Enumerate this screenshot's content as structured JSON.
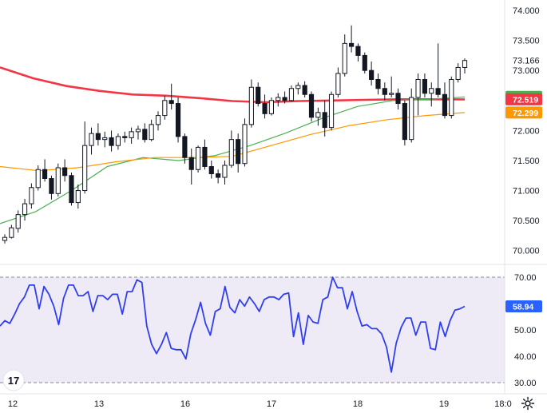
{
  "chart_data": [
    {
      "type": "candlestick",
      "x_labels": [
        "12",
        "13",
        "16",
        "17",
        "18",
        "19",
        "18:0"
      ],
      "y_ticks": [
        "74.000",
        "73.500",
        "73.000",
        "72.500",
        "72.000",
        "71.500",
        "71.000",
        "70.500",
        "70.000"
      ],
      "ylim": [
        69.85,
        74.12
      ],
      "price_badges": [
        {
          "label": "73.166",
          "value": 73.166,
          "color": "#ffffff",
          "text_color": "#131722"
        },
        {
          "label": "72.560",
          "value": 72.56,
          "color": "#4caf50",
          "text_color": "#ffffff"
        },
        {
          "label": "72.519",
          "value": 72.519,
          "color": "#f23645",
          "text_color": "#ffffff"
        },
        {
          "label": "72.299",
          "value": 72.299,
          "color": "#ff9800",
          "text_color": "#ffffff"
        }
      ],
      "moving_averages": [
        {
          "color": "#f23645",
          "values": [
            73.05,
            72.87,
            72.74,
            72.66,
            72.6,
            72.58,
            72.54,
            72.49,
            72.47,
            72.49,
            72.5,
            72.51,
            72.52,
            72.52,
            72.519
          ]
        },
        {
          "color": "#4caf50",
          "values": [
            70.45,
            70.65,
            71.0,
            71.4,
            71.55,
            71.5,
            71.58,
            71.75,
            71.96,
            72.2,
            72.4,
            72.5,
            72.52,
            72.56
          ]
        },
        {
          "color": "#ff9800",
          "values": [
            71.4,
            71.33,
            71.38,
            71.48,
            71.55,
            71.55,
            71.57,
            71.75,
            71.93,
            72.08,
            72.18,
            72.25,
            72.299
          ]
        }
      ],
      "candles": [
        [
          70.17,
          70.27,
          70.12,
          70.22
        ],
        [
          70.22,
          70.43,
          70.2,
          70.38
        ],
        [
          70.37,
          70.67,
          70.3,
          70.6
        ],
        [
          70.6,
          70.86,
          70.5,
          70.78
        ],
        [
          70.78,
          71.12,
          70.7,
          71.05
        ],
        [
          71.05,
          71.42,
          71.0,
          71.35
        ],
        [
          71.35,
          71.52,
          71.15,
          71.2
        ],
        [
          71.2,
          71.25,
          70.85,
          70.95
        ],
        [
          70.95,
          71.45,
          70.9,
          71.38
        ],
        [
          71.38,
          71.52,
          71.15,
          71.25
        ],
        [
          71.25,
          71.3,
          70.75,
          70.8
        ],
        [
          70.8,
          71.1,
          70.7,
          71.0
        ],
        [
          71.0,
          72.15,
          70.95,
          71.75
        ],
        [
          71.75,
          72.05,
          71.6,
          71.95
        ],
        [
          71.95,
          72.12,
          71.75,
          71.85
        ],
        [
          71.85,
          71.98,
          71.72,
          71.88
        ],
        [
          71.88,
          72.0,
          71.65,
          71.75
        ],
        [
          71.75,
          71.95,
          71.68,
          71.9
        ],
        [
          71.9,
          71.98,
          71.8,
          71.88
        ],
        [
          71.88,
          72.05,
          71.78,
          71.98
        ],
        [
          71.98,
          72.08,
          71.85,
          72.02
        ],
        [
          72.02,
          72.12,
          71.8,
          71.85
        ],
        [
          71.85,
          72.18,
          71.82,
          72.1
        ],
        [
          72.1,
          72.32,
          72.0,
          72.25
        ],
        [
          72.25,
          72.58,
          72.18,
          72.5
        ],
        [
          72.5,
          72.78,
          72.35,
          72.45
        ],
        [
          72.45,
          72.55,
          71.8,
          71.9
        ],
        [
          71.9,
          71.95,
          71.45,
          71.55
        ],
        [
          71.55,
          71.7,
          71.1,
          71.35
        ],
        [
          71.35,
          71.75,
          71.3,
          71.72
        ],
        [
          71.72,
          71.85,
          71.35,
          71.4
        ],
        [
          71.4,
          71.5,
          71.2,
          71.28
        ],
        [
          71.28,
          71.35,
          71.12,
          71.22
        ],
        [
          71.22,
          71.5,
          71.1,
          71.42
        ],
        [
          71.42,
          72.0,
          71.38,
          71.85
        ],
        [
          71.85,
          71.95,
          71.3,
          71.45
        ],
        [
          71.45,
          72.2,
          71.4,
          72.1
        ],
        [
          72.1,
          72.85,
          72.05,
          72.72
        ],
        [
          72.72,
          72.8,
          72.4,
          72.45
        ],
        [
          72.45,
          72.6,
          72.2,
          72.28
        ],
        [
          72.28,
          72.55,
          72.25,
          72.5
        ],
        [
          72.5,
          72.62,
          72.4,
          72.55
        ],
        [
          72.55,
          72.65,
          72.45,
          72.5
        ],
        [
          72.5,
          72.75,
          72.48,
          72.7
        ],
        [
          72.7,
          72.8,
          72.6,
          72.75
        ],
        [
          72.75,
          72.82,
          72.55,
          72.6
        ],
        [
          72.6,
          72.65,
          72.15,
          72.22
        ],
        [
          72.22,
          72.38,
          72.08,
          72.3
        ],
        [
          72.3,
          72.5,
          71.9,
          72.05
        ],
        [
          72.05,
          72.65,
          72.0,
          72.6
        ],
        [
          72.6,
          73.05,
          72.55,
          72.95
        ],
        [
          72.95,
          73.6,
          72.9,
          73.45
        ],
        [
          73.45,
          73.75,
          73.3,
          73.4
        ],
        [
          73.4,
          73.45,
          73.15,
          73.25
        ],
        [
          73.25,
          73.3,
          72.95,
          73.0
        ],
        [
          73.0,
          73.15,
          72.75,
          72.85
        ],
        [
          72.85,
          72.95,
          72.6,
          72.7
        ],
        [
          72.7,
          72.8,
          72.5,
          72.6
        ],
        [
          72.6,
          72.9,
          72.55,
          72.62
        ],
        [
          72.62,
          72.7,
          72.35,
          72.45
        ],
        [
          72.45,
          72.5,
          71.75,
          71.85
        ],
        [
          71.85,
          72.7,
          71.8,
          72.55
        ],
        [
          72.55,
          72.95,
          72.25,
          72.85
        ],
        [
          72.85,
          72.95,
          72.55,
          72.62
        ],
        [
          72.62,
          72.8,
          72.4,
          72.7
        ],
        [
          72.7,
          73.45,
          72.55,
          72.6
        ],
        [
          72.6,
          72.8,
          72.2,
          72.25
        ],
        [
          72.25,
          72.9,
          72.2,
          72.85
        ],
        [
          72.85,
          73.12,
          72.8,
          73.05
        ],
        [
          73.05,
          73.2,
          72.95,
          73.166
        ]
      ]
    },
    {
      "type": "line",
      "y_ticks": [
        "70.00",
        "60.00",
        "50.00",
        "40.00",
        "30.00"
      ],
      "ylim": [
        26.5,
        73
      ],
      "levels": [
        70,
        30
      ],
      "value_badge": {
        "label": "58.94",
        "value": 58.94,
        "color": "#2962ff",
        "text_color": "#ffffff"
      },
      "series": [
        {
          "color": "#2f3ff0",
          "values": [
            51.5,
            53.5,
            52.5,
            56,
            60,
            62.5,
            67,
            67,
            58,
            66.5,
            63.5,
            59,
            52,
            62,
            67,
            67,
            63,
            63,
            64.5,
            57,
            63,
            63,
            61.5,
            63.5,
            63.5,
            56,
            64.5,
            64.5,
            69,
            68,
            51.5,
            44.5,
            41,
            44.5,
            49,
            43,
            42.5,
            42.5,
            39,
            48.5,
            54,
            60.5,
            52.5,
            48,
            57,
            58,
            66.5,
            58.5,
            56.5,
            61.5,
            59,
            62.5,
            60,
            57,
            61.5,
            62.5,
            62.5,
            61.5,
            63.5,
            64,
            47.5,
            56.5,
            44.5,
            55.5,
            53,
            52.5,
            61.5,
            62.5,
            70,
            66,
            66,
            58,
            64.5,
            57,
            51.5,
            52,
            50.5,
            50.5,
            48.5,
            43.5,
            34,
            45,
            51,
            54.5,
            54.5,
            48,
            53,
            53,
            43,
            42.5,
            53,
            47.5,
            53.5,
            57.5,
            58,
            58.94
          ]
        }
      ]
    }
  ],
  "logo": {
    "text": "17"
  }
}
